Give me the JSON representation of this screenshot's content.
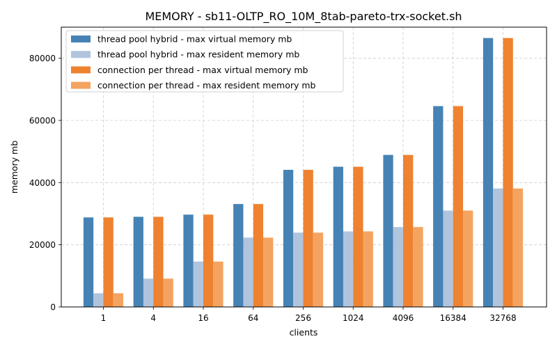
{
  "chart_data": {
    "type": "bar",
    "title": "MEMORY - sb11-OLTP_RO_10M_8tab-pareto-trx-socket.sh",
    "xlabel": "clients",
    "ylabel": "memory mb",
    "categories": [
      "1",
      "4",
      "16",
      "64",
      "256",
      "1024",
      "4096",
      "16384",
      "32768"
    ],
    "ylim": [
      0,
      90000
    ],
    "yticks": [
      0,
      20000,
      40000,
      60000,
      80000
    ],
    "grid": true,
    "legend_position": "top-left",
    "series": [
      {
        "name": "thread pool hybrid - max virtual memory mb",
        "color": "#4682b4",
        "values": [
          28800,
          29000,
          29700,
          33100,
          44100,
          45100,
          48900,
          64600,
          86500
        ]
      },
      {
        "name": "thread pool hybrid - max resident memory mb",
        "color": "#b0c4de",
        "values": [
          4400,
          9100,
          14600,
          22300,
          23900,
          24300,
          25700,
          31000,
          38100
        ]
      },
      {
        "name": "connection per thread - max virtual memory mb",
        "color": "#ee8230",
        "values": [
          28800,
          29000,
          29700,
          33100,
          44100,
          45100,
          48900,
          64600,
          86500
        ]
      },
      {
        "name": "connection per thread - max resident memory mb",
        "color": "#f4a460",
        "values": [
          4400,
          9100,
          14600,
          22300,
          23900,
          24300,
          25700,
          31000,
          38100
        ]
      }
    ]
  }
}
